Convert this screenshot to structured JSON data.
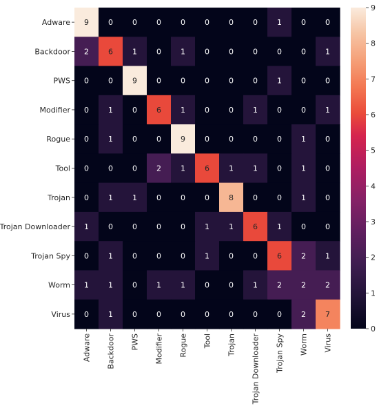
{
  "chart_data": {
    "type": "heatmap",
    "title": "",
    "xlabel": "",
    "ylabel": "",
    "rows": [
      "Adware",
      "Backdoor",
      "PWS",
      "Modifier",
      "Rogue",
      "Tool",
      "Trojan",
      "Trojan Downloader",
      "Trojan Spy",
      "Worm",
      "Virus"
    ],
    "columns": [
      "Adware",
      "Backdoor",
      "PWS",
      "Modifier",
      "Rogue",
      "Tool",
      "Trojan",
      "Trojan Downloader",
      "Trojan Spy",
      "Worm",
      "Virus"
    ],
    "values": [
      [
        9,
        0,
        0,
        0,
        0,
        0,
        0,
        0,
        1,
        0,
        0
      ],
      [
        2,
        6,
        1,
        0,
        1,
        0,
        0,
        0,
        0,
        0,
        1
      ],
      [
        0,
        0,
        9,
        0,
        0,
        0,
        0,
        0,
        1,
        0,
        0
      ],
      [
        0,
        1,
        0,
        6,
        1,
        0,
        0,
        1,
        0,
        0,
        1
      ],
      [
        0,
        1,
        0,
        0,
        9,
        0,
        0,
        0,
        0,
        1,
        0
      ],
      [
        0,
        0,
        0,
        2,
        1,
        6,
        1,
        1,
        0,
        1,
        0
      ],
      [
        0,
        1,
        1,
        0,
        0,
        0,
        8,
        0,
        0,
        1,
        0
      ],
      [
        1,
        0,
        0,
        0,
        0,
        1,
        1,
        6,
        1,
        0,
        0
      ],
      [
        0,
        1,
        0,
        0,
        0,
        1,
        0,
        0,
        6,
        2,
        1
      ],
      [
        1,
        1,
        0,
        1,
        1,
        0,
        0,
        1,
        2,
        2,
        2
      ],
      [
        0,
        1,
        0,
        0,
        0,
        0,
        0,
        0,
        0,
        2,
        7
      ]
    ],
    "colorbar": {
      "range": [
        0,
        9
      ],
      "ticks": [
        "0",
        "1",
        "2",
        "3",
        "4",
        "5",
        "6",
        "7",
        "8",
        "9"
      ],
      "colormap": "rocket"
    },
    "annotations": "cell values shown"
  }
}
